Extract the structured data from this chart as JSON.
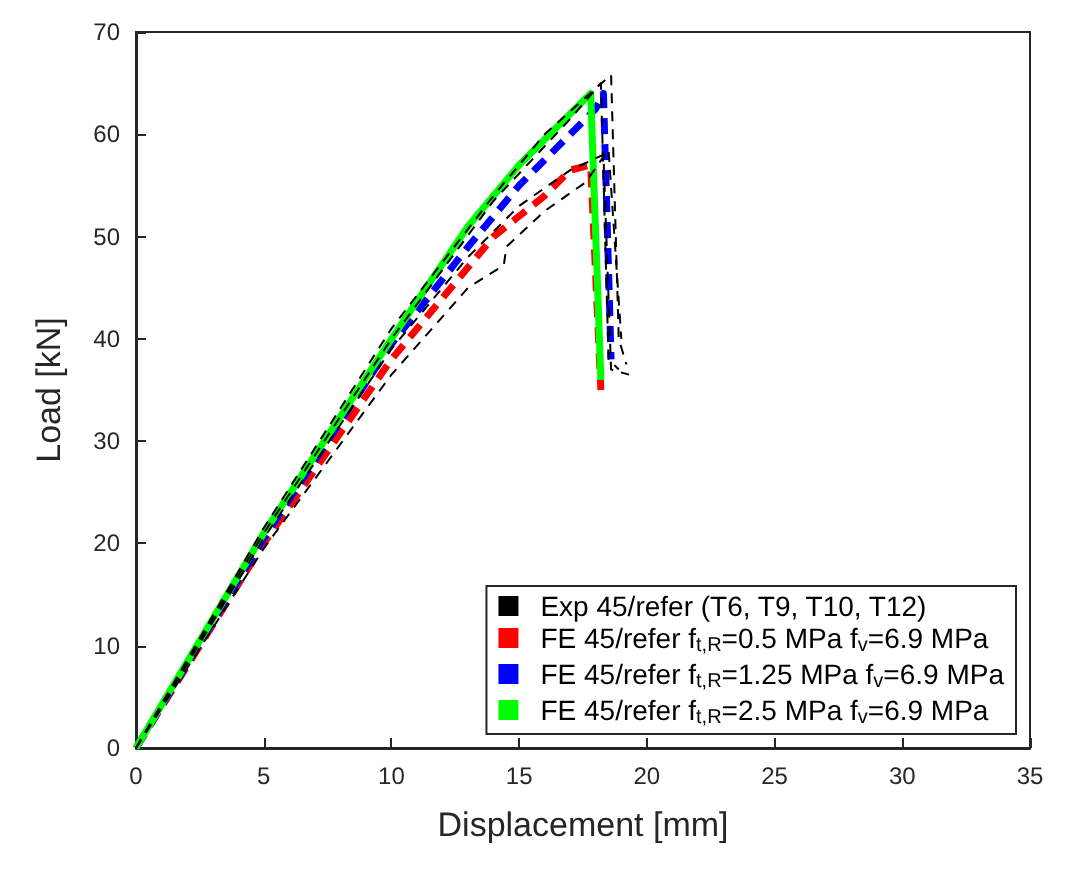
{
  "chart_data": {
    "type": "line",
    "xlabel": "Displacement [mm]",
    "ylabel": "Load [kN]",
    "xlim": [
      0,
      35
    ],
    "ylim": [
      0,
      70
    ],
    "xticks": [
      0,
      5,
      10,
      15,
      20,
      25,
      30,
      35
    ],
    "yticks": [
      0,
      10,
      20,
      30,
      40,
      50,
      60,
      70
    ],
    "grid": false,
    "legend": "bottom right",
    "marker": "none",
    "series": [
      {
        "name": "Exp 45/refer (T6, T9, T10, T12)",
        "color": "#000000",
        "line_style": "dashed",
        "x": [
          0,
          5,
          10,
          14,
          16,
          18,
          18.6,
          18.9,
          19.2
        ],
        "values": [
          0,
          21.5,
          41,
          54,
          60,
          64.5,
          65.8,
          40,
          37.5
        ]
      },
      {
        "color": "#000000",
        "line_style": "dashed",
        "x": [
          0,
          5,
          10,
          14,
          17,
          18.2,
          18.5,
          18.9
        ],
        "values": [
          0,
          21,
          40,
          53.5,
          61.5,
          65,
          38,
          37
        ]
      },
      {
        "color": "#000000",
        "line_style": "dashed",
        "x": [
          0,
          5,
          10,
          13,
          15,
          17,
          18.3,
          18.6,
          19.3
        ],
        "values": [
          0,
          20.5,
          39,
          48,
          53,
          56.5,
          58,
          37,
          36.5
        ]
      },
      {
        "color": "#000000",
        "line_style": "dashed",
        "x": [
          0,
          5,
          10,
          13,
          14.4,
          14.5,
          16,
          17.6,
          18.5,
          19
        ],
        "values": [
          0,
          19.5,
          36.5,
          45,
          47.2,
          49,
          52.5,
          55.3,
          58.5,
          40
        ]
      },
      {
        "name": "FE 45/refer f$_{t,R}$=0.5 MPa f$_{v}$=6.9 MPa",
        "color": "#ff0000",
        "line_style": "dashed",
        "x": [
          0,
          5,
          10,
          13,
          14,
          15,
          16,
          17,
          17.8,
          18.2
        ],
        "values": [
          0,
          20,
          38,
          47,
          50,
          52,
          54,
          56.5,
          57,
          35
        ]
      },
      {
        "name": "FE 45/refer f$_{t,R}$=1.25 MPa f$_{v}$=6.9 MPa",
        "color": "#0000ff",
        "line_style": "dashed",
        "x": [
          0,
          5,
          10,
          13,
          15,
          17,
          18,
          18.3,
          18.6
        ],
        "values": [
          0,
          20.5,
          39.5,
          49,
          55,
          60,
          62.5,
          64,
          38
        ]
      },
      {
        "name": "FE 45/refer f$_{t,R}$=2.5 MPa f$_{v}$=6.9 MPa",
        "color": "#00ff00",
        "line_style": "solid",
        "x": [
          0,
          5,
          10,
          13,
          15,
          17,
          17.8,
          18.2
        ],
        "values": [
          0,
          21,
          40,
          51,
          57,
          62,
          64,
          36
        ]
      }
    ]
  }
}
